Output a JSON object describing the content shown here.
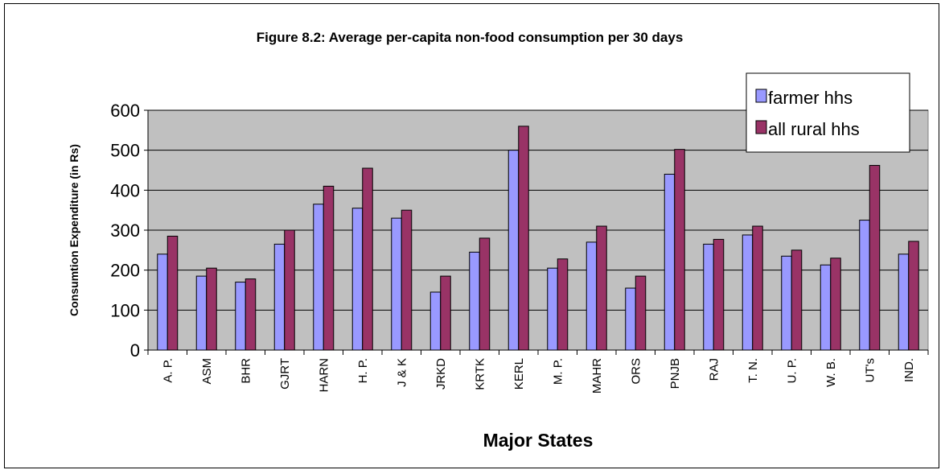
{
  "chart_data": {
    "type": "bar",
    "title": "Figure 8.2: Average per-capita non-food consumption per 30 days",
    "xlabel": "Major States",
    "ylabel": "Consumtion Expenditure (in Rs)",
    "ylim": [
      0,
      600
    ],
    "yticks": [
      "0",
      "100",
      "200",
      "300",
      "400",
      "500",
      "600"
    ],
    "grid": true,
    "legend_position": "top-right",
    "categories": [
      "A. P.",
      "ASM",
      "BHR",
      "GJRT",
      "HARN",
      "H. P.",
      "J & K",
      "JRKD",
      "KRTK",
      "KERL",
      "M. P.",
      "MAHR",
      "ORS",
      "PNJB",
      "RAJ",
      "T. N.",
      "U. P.",
      "W. B.",
      "UT's",
      "IND."
    ],
    "series": [
      {
        "name": "farmer hhs",
        "color": "#9999ff",
        "values": [
          240,
          185,
          170,
          265,
          365,
          355,
          330,
          145,
          245,
          500,
          205,
          270,
          155,
          440,
          265,
          288,
          235,
          213,
          325,
          240
        ]
      },
      {
        "name": "all rural hhs",
        "color": "#993366",
        "values": [
          285,
          205,
          178,
          300,
          410,
          455,
          350,
          185,
          280,
          560,
          228,
          310,
          185,
          502,
          277,
          310,
          250,
          230,
          462,
          272
        ]
      }
    ]
  },
  "colors": {
    "plot_bg": "#c0c0c0",
    "grid": "#000000",
    "border": "#000000"
  }
}
